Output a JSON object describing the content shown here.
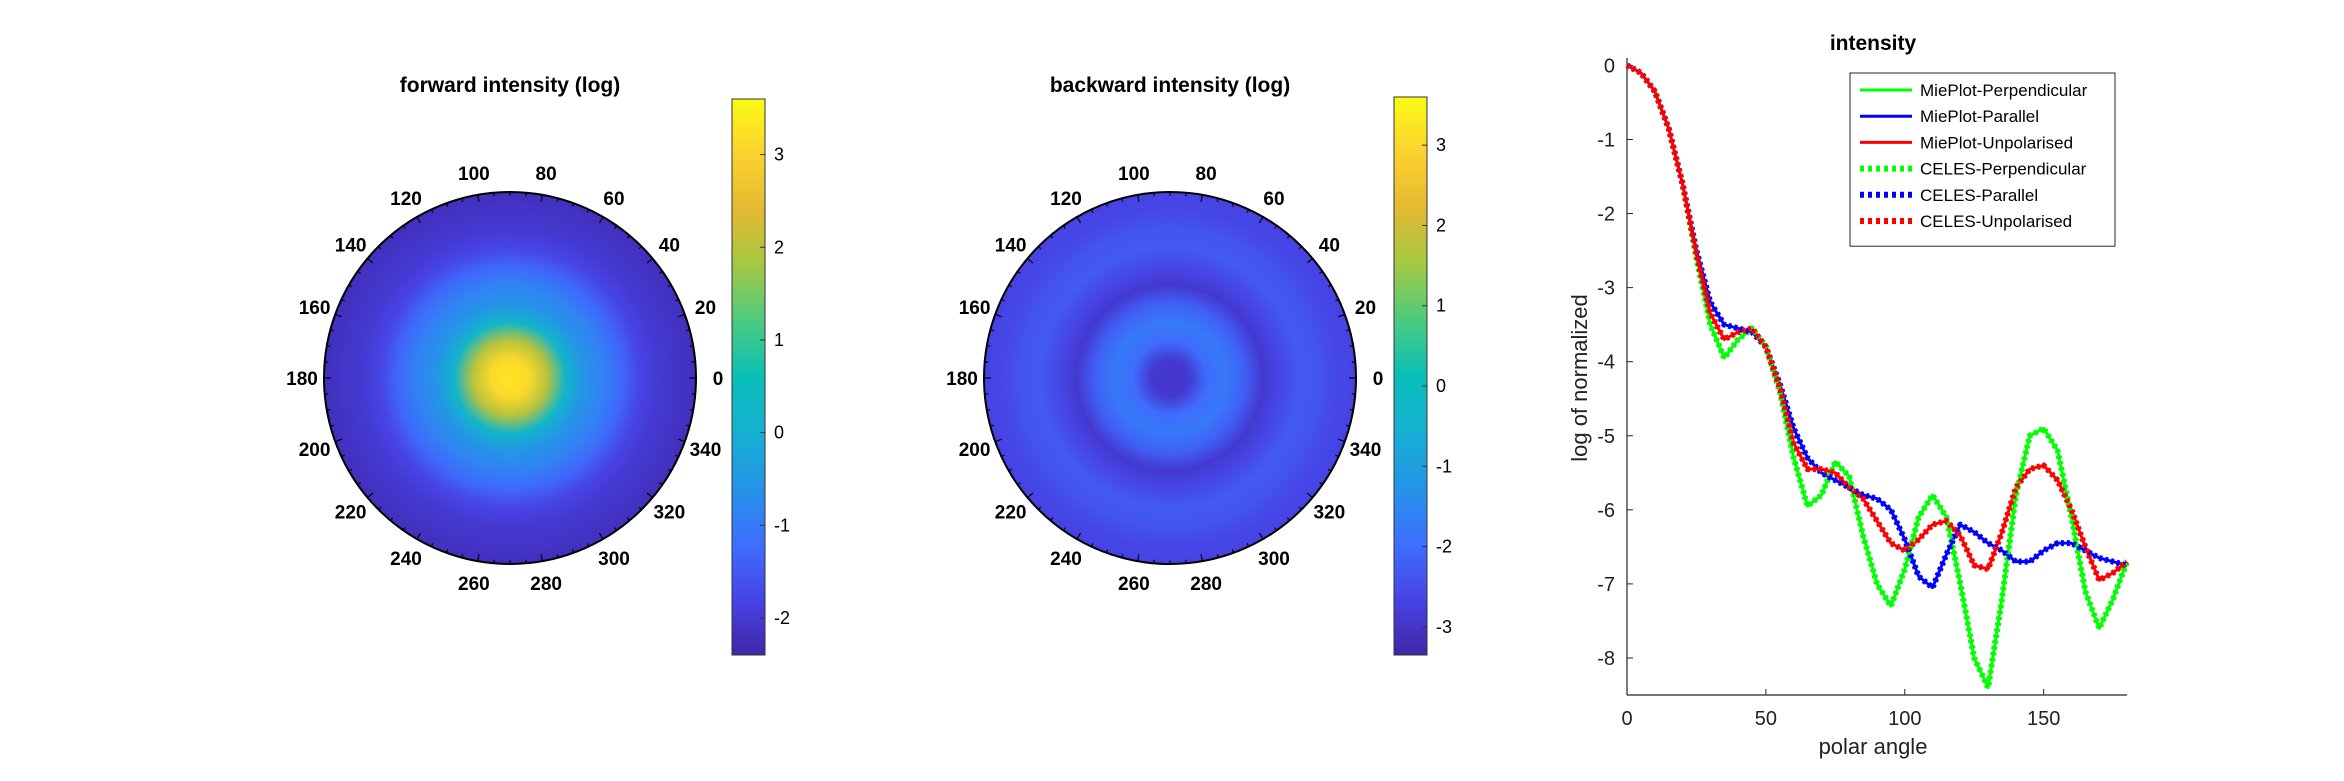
{
  "figure": {
    "panels": [
      {
        "id": "forward",
        "title": "forward intensity (log)",
        "colorbar_ticks": [
          "3",
          "2",
          "1",
          "0",
          "-1",
          "-2"
        ]
      },
      {
        "id": "backward",
        "title": "backward intensity (log)",
        "colorbar_ticks": [
          "3",
          "2",
          "1",
          "0",
          "-1",
          "-2",
          "-3"
        ]
      }
    ],
    "angle_labels": [
      "0",
      "20",
      "40",
      "60",
      "80",
      "100",
      "120",
      "140",
      "160",
      "180",
      "200",
      "220",
      "240",
      "260",
      "280",
      "300",
      "320",
      "340"
    ]
  },
  "chart_data": [
    {
      "type": "heatmap",
      "projection": "polar",
      "title": "forward intensity (log)",
      "colormap": "parula",
      "clim": [
        -2.4,
        3.6
      ],
      "angle_ticks_deg": [
        0,
        20,
        40,
        60,
        80,
        100,
        120,
        140,
        160,
        180,
        200,
        220,
        240,
        260,
        280,
        300,
        320,
        340
      ],
      "colorbar_ticks": [
        3,
        2,
        1,
        0,
        -1,
        -2
      ],
      "radial_profile": {
        "r": [
          0,
          0.1,
          0.2,
          0.3,
          0.4,
          0.5,
          0.6,
          0.7,
          0.8,
          0.9,
          1.0
        ],
        "value": [
          3.3,
          3.1,
          2.0,
          0.2,
          -0.6,
          -0.9,
          -1.3,
          -1.8,
          -2.0,
          -2.1,
          -2.2
        ]
      }
    },
    {
      "type": "heatmap",
      "projection": "polar",
      "title": "backward intensity (log)",
      "colormap": "parula",
      "clim": [
        -3.35,
        3.6
      ],
      "angle_ticks_deg": [
        0,
        20,
        40,
        60,
        80,
        100,
        120,
        140,
        160,
        180,
        200,
        220,
        240,
        260,
        280,
        300,
        320,
        340
      ],
      "colorbar_ticks": [
        3,
        2,
        1,
        0,
        -1,
        -2,
        -3
      ],
      "radial_profile": {
        "r": [
          0,
          0.1,
          0.2,
          0.3,
          0.4,
          0.5,
          0.6,
          0.7,
          0.8,
          0.9,
          1.0
        ],
        "value": [
          -3.0,
          -2.9,
          -2.0,
          -1.75,
          -2.2,
          -2.9,
          -2.6,
          -2.3,
          -2.4,
          -2.6,
          -2.7
        ]
      }
    },
    {
      "type": "line",
      "title": "intensity",
      "xlabel": "polar angle",
      "ylabel": "log of normalized",
      "xlim": [
        0,
        180
      ],
      "ylim": [
        -8.5,
        0.1
      ],
      "xticks": [
        0,
        50,
        100,
        150
      ],
      "yticks": [
        0,
        -1,
        -2,
        -3,
        -4,
        -5,
        -6,
        -7,
        -8
      ],
      "legend_position": "top-right",
      "series": [
        {
          "name": "MiePlot-Perpendicular",
          "color": "#00ff00",
          "style": "solid",
          "x": [
            0,
            5,
            10,
            15,
            20,
            25,
            30,
            35,
            40,
            45,
            50,
            55,
            60,
            65,
            70,
            75,
            80,
            85,
            90,
            95,
            100,
            105,
            110,
            115,
            120,
            125,
            130,
            135,
            140,
            145,
            150,
            155,
            160,
            165,
            170,
            175,
            180
          ],
          "y": [
            0,
            -0.1,
            -0.35,
            -0.85,
            -1.6,
            -2.6,
            -3.5,
            -3.95,
            -3.7,
            -3.55,
            -3.8,
            -4.4,
            -5.3,
            -5.95,
            -5.8,
            -5.35,
            -5.55,
            -6.35,
            -7.0,
            -7.3,
            -6.8,
            -6.1,
            -5.8,
            -6.1,
            -7.0,
            -8.0,
            -8.4,
            -7.2,
            -5.8,
            -5.0,
            -4.9,
            -5.2,
            -6.1,
            -7.1,
            -7.6,
            -7.2,
            -6.7
          ]
        },
        {
          "name": "MiePlot-Parallel",
          "color": "#0000ff",
          "style": "solid",
          "x": [
            0,
            5,
            10,
            15,
            20,
            25,
            30,
            35,
            40,
            45,
            50,
            55,
            60,
            65,
            70,
            75,
            80,
            85,
            90,
            95,
            100,
            105,
            110,
            115,
            120,
            125,
            130,
            135,
            140,
            145,
            150,
            155,
            160,
            165,
            170,
            175,
            180
          ],
          "y": [
            0,
            -0.1,
            -0.35,
            -0.85,
            -1.6,
            -2.5,
            -3.2,
            -3.5,
            -3.55,
            -3.6,
            -3.8,
            -4.3,
            -4.9,
            -5.3,
            -5.5,
            -5.6,
            -5.7,
            -5.8,
            -5.85,
            -6.0,
            -6.4,
            -6.9,
            -7.05,
            -6.6,
            -6.2,
            -6.3,
            -6.45,
            -6.55,
            -6.7,
            -6.7,
            -6.55,
            -6.45,
            -6.45,
            -6.55,
            -6.65,
            -6.7,
            -6.75
          ]
        },
        {
          "name": "MiePlot-Unpolarised",
          "color": "#ff0000",
          "style": "solid",
          "x": [
            0,
            5,
            10,
            15,
            20,
            25,
            30,
            35,
            40,
            45,
            50,
            55,
            60,
            65,
            70,
            75,
            80,
            85,
            90,
            95,
            100,
            105,
            110,
            115,
            120,
            125,
            130,
            135,
            140,
            145,
            150,
            155,
            160,
            165,
            170,
            175,
            180
          ],
          "y": [
            0,
            -0.1,
            -0.35,
            -0.85,
            -1.6,
            -2.55,
            -3.35,
            -3.7,
            -3.6,
            -3.55,
            -3.8,
            -4.35,
            -5.1,
            -5.45,
            -5.45,
            -5.5,
            -5.7,
            -5.85,
            -6.15,
            -6.45,
            -6.55,
            -6.4,
            -6.2,
            -6.15,
            -6.35,
            -6.75,
            -6.8,
            -6.3,
            -5.7,
            -5.45,
            -5.4,
            -5.6,
            -6.0,
            -6.5,
            -6.95,
            -6.85,
            -6.7
          ]
        },
        {
          "name": "CELES-Perpendicular",
          "color": "#00ff00",
          "style": "dotted",
          "x": [
            0,
            5,
            10,
            15,
            20,
            25,
            30,
            35,
            40,
            45,
            50,
            55,
            60,
            65,
            70,
            75,
            80,
            85,
            90,
            95,
            100,
            105,
            110,
            115,
            120,
            125,
            130,
            135,
            140,
            145,
            150,
            155,
            160,
            165,
            170,
            175,
            180
          ],
          "y": [
            0,
            -0.1,
            -0.35,
            -0.85,
            -1.6,
            -2.6,
            -3.5,
            -3.95,
            -3.7,
            -3.55,
            -3.8,
            -4.4,
            -5.3,
            -5.95,
            -5.8,
            -5.35,
            -5.55,
            -6.35,
            -7.0,
            -7.3,
            -6.8,
            -6.1,
            -5.8,
            -6.1,
            -7.0,
            -8.0,
            -8.4,
            -7.2,
            -5.8,
            -5.0,
            -4.9,
            -5.2,
            -6.1,
            -7.1,
            -7.6,
            -7.2,
            -6.7
          ]
        },
        {
          "name": "CELES-Parallel",
          "color": "#0000ff",
          "style": "dotted",
          "x": [
            0,
            5,
            10,
            15,
            20,
            25,
            30,
            35,
            40,
            45,
            50,
            55,
            60,
            65,
            70,
            75,
            80,
            85,
            90,
            95,
            100,
            105,
            110,
            115,
            120,
            125,
            130,
            135,
            140,
            145,
            150,
            155,
            160,
            165,
            170,
            175,
            180
          ],
          "y": [
            0,
            -0.1,
            -0.35,
            -0.85,
            -1.6,
            -2.5,
            -3.2,
            -3.5,
            -3.55,
            -3.6,
            -3.8,
            -4.3,
            -4.9,
            -5.3,
            -5.5,
            -5.6,
            -5.7,
            -5.8,
            -5.85,
            -6.0,
            -6.4,
            -6.9,
            -7.05,
            -6.6,
            -6.2,
            -6.3,
            -6.45,
            -6.55,
            -6.7,
            -6.7,
            -6.55,
            -6.45,
            -6.45,
            -6.55,
            -6.65,
            -6.7,
            -6.75
          ]
        },
        {
          "name": "CELES-Unpolarised",
          "color": "#ff0000",
          "style": "dotted",
          "x": [
            0,
            5,
            10,
            15,
            20,
            25,
            30,
            35,
            40,
            45,
            50,
            55,
            60,
            65,
            70,
            75,
            80,
            85,
            90,
            95,
            100,
            105,
            110,
            115,
            120,
            125,
            130,
            135,
            140,
            145,
            150,
            155,
            160,
            165,
            170,
            175,
            180
          ],
          "y": [
            0,
            -0.1,
            -0.35,
            -0.85,
            -1.6,
            -2.55,
            -3.35,
            -3.7,
            -3.6,
            -3.55,
            -3.8,
            -4.35,
            -5.1,
            -5.45,
            -5.45,
            -5.5,
            -5.7,
            -5.85,
            -6.15,
            -6.45,
            -6.55,
            -6.4,
            -6.2,
            -6.15,
            -6.35,
            -6.75,
            -6.8,
            -6.3,
            -5.7,
            -5.45,
            -5.4,
            -5.6,
            -6.0,
            -6.5,
            -6.95,
            -6.85,
            -6.7
          ]
        }
      ]
    }
  ]
}
